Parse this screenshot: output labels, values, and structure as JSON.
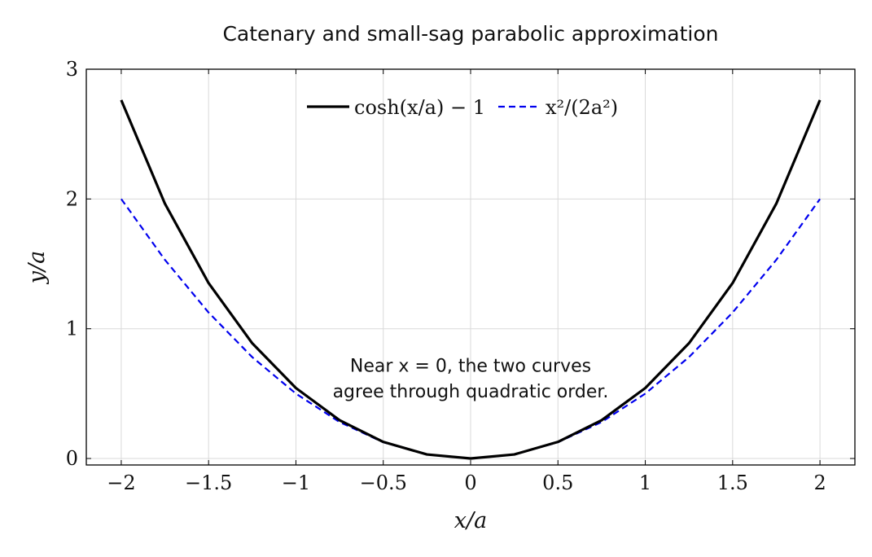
{
  "chart_data": {
    "type": "line",
    "title": "Catenary and small-sag parabolic approximation",
    "xlabel": "x/a",
    "ylabel": "y/a",
    "xlim": [
      -2.2,
      2.2
    ],
    "ylim": [
      -0.05,
      3
    ],
    "x_ticks": [
      -2,
      -1.5,
      -1,
      -0.5,
      0,
      0.5,
      1,
      1.5,
      2
    ],
    "x_tick_labels": [
      "−2",
      "−1.5",
      "−1",
      "−0.5",
      "0",
      "0.5",
      "1",
      "1.5",
      "2"
    ],
    "y_ticks": [
      0,
      1,
      2,
      3
    ],
    "y_tick_labels": [
      "0",
      "1",
      "2",
      "3"
    ],
    "grid": true,
    "legend_position": "top-center",
    "x": [
      -2,
      -1.75,
      -1.5,
      -1.25,
      -1,
      -0.75,
      -0.5,
      -0.25,
      0,
      0.25,
      0.5,
      0.75,
      1,
      1.25,
      1.5,
      1.75,
      2
    ],
    "series": [
      {
        "name": "cosh(x/a) − 1",
        "color": "#000000",
        "style": "solid",
        "values": [
          2.762,
          1.964,
          1.352,
          0.888,
          0.543,
          0.295,
          0.128,
          0.031,
          0,
          0.031,
          0.128,
          0.295,
          0.543,
          0.888,
          1.352,
          1.964,
          2.762
        ]
      },
      {
        "name": "x²/(2a²)",
        "color": "#0000ee",
        "style": "dashed",
        "values": [
          2,
          1.531,
          1.125,
          0.781,
          0.5,
          0.281,
          0.125,
          0.031,
          0,
          0.031,
          0.125,
          0.281,
          0.5,
          0.781,
          1.125,
          1.531,
          2
        ]
      }
    ],
    "annotation": {
      "lines": [
        "Near x = 0, the two curves",
        "agree through quadratic order."
      ],
      "x": 0,
      "y": [
        0.72,
        0.52
      ]
    }
  }
}
